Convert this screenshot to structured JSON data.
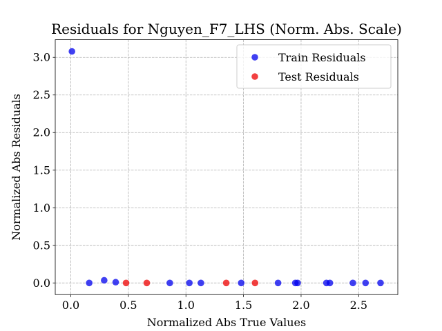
{
  "chart_data": {
    "type": "scatter",
    "title": "Residuals for Nguyen_F7_LHS (Norm. Abs. Scale)",
    "xlabel": "Normalized Abs True Values",
    "ylabel": "Normalized Abs Residuals",
    "xlim": [
      -0.135,
      2.84
    ],
    "ylim": [
      -0.155,
      3.235
    ],
    "xticks": [
      0.0,
      0.5,
      1.0,
      1.5,
      2.0,
      2.5
    ],
    "xtick_labels": [
      "0.0",
      "0.5",
      "1.0",
      "1.5",
      "2.0",
      "2.5"
    ],
    "yticks": [
      0.0,
      0.5,
      1.0,
      1.5,
      2.0,
      2.5,
      3.0
    ],
    "ytick_labels": [
      "0.0",
      "0.5",
      "1.0",
      "1.5",
      "2.0",
      "2.5",
      "3.0"
    ],
    "grid": true,
    "legend_position": "top-right",
    "series": [
      {
        "name": "Train Residuals",
        "color": "#0000ee",
        "points": [
          {
            "x": 0.01,
            "y": 3.08
          },
          {
            "x": 0.16,
            "y": 0.0
          },
          {
            "x": 0.29,
            "y": 0.035
          },
          {
            "x": 0.39,
            "y": 0.01
          },
          {
            "x": 0.86,
            "y": 0.0
          },
          {
            "x": 1.03,
            "y": 0.0
          },
          {
            "x": 1.13,
            "y": 0.0
          },
          {
            "x": 1.48,
            "y": 0.0
          },
          {
            "x": 1.8,
            "y": 0.0
          },
          {
            "x": 1.95,
            "y": 0.0
          },
          {
            "x": 1.97,
            "y": 0.0
          },
          {
            "x": 2.22,
            "y": 0.0
          },
          {
            "x": 2.25,
            "y": 0.0
          },
          {
            "x": 2.45,
            "y": 0.0
          },
          {
            "x": 2.56,
            "y": 0.0
          },
          {
            "x": 2.69,
            "y": 0.0
          }
        ]
      },
      {
        "name": "Test Residuals",
        "color": "#ee0000",
        "points": [
          {
            "x": 0.48,
            "y": 0.0
          },
          {
            "x": 0.66,
            "y": 0.0
          },
          {
            "x": 1.35,
            "y": 0.0
          },
          {
            "x": 1.6,
            "y": 0.0
          }
        ]
      }
    ]
  }
}
